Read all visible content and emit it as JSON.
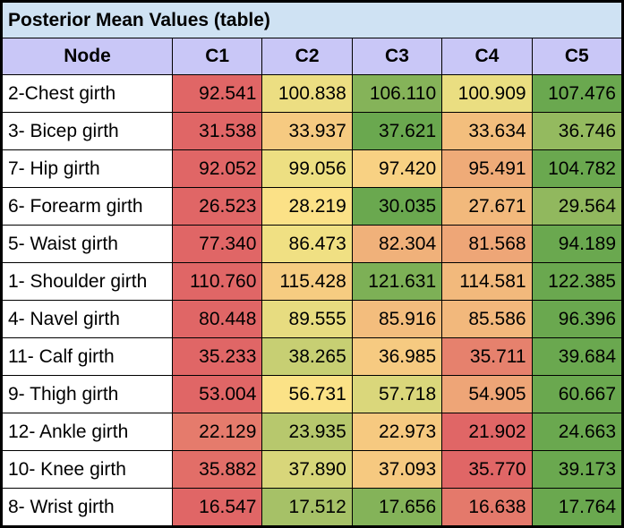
{
  "colors": {
    "low": "#e06666",
    "mid": "#fce588",
    "high": "#6aa84f",
    "header_bg": "#c9c7f7",
    "title_bg": "#cfe2f3"
  },
  "chart_data": {
    "type": "table",
    "title": "Posterior Mean Values (table)",
    "row_header": "Node",
    "columns": [
      "C1",
      "C2",
      "C3",
      "C4",
      "C5"
    ],
    "color_scale": "per-row red-yellow-green heatmap (low to high)",
    "rows": [
      {
        "node": "2-Chest girth",
        "values": [
          "92.541",
          "100.838",
          "106.110",
          "100.909",
          "107.476"
        ]
      },
      {
        "node": "3- Bicep girth",
        "values": [
          "31.538",
          "33.937",
          "37.621",
          "33.634",
          "36.746"
        ]
      },
      {
        "node": "7- Hip girth",
        "values": [
          "92.052",
          "99.056",
          "97.420",
          "95.491",
          "104.782"
        ]
      },
      {
        "node": "6- Forearm girth",
        "values": [
          "26.523",
          "28.219",
          "30.035",
          "27.671",
          "29.564"
        ]
      },
      {
        "node": "5- Waist girth",
        "values": [
          "77.340",
          "86.473",
          "82.304",
          "81.568",
          "94.189"
        ]
      },
      {
        "node": "1- Shoulder girth",
        "values": [
          "110.760",
          "115.428",
          "121.631",
          "114.581",
          "122.385"
        ]
      },
      {
        "node": "4- Navel girth",
        "values": [
          "80.448",
          "89.555",
          "85.916",
          "85.586",
          "96.396"
        ]
      },
      {
        "node": "11- Calf girth",
        "values": [
          "35.233",
          "38.265",
          "36.985",
          "35.711",
          "39.684"
        ]
      },
      {
        "node": "9- Thigh girth",
        "values": [
          "53.004",
          "56.731",
          "57.718",
          "54.905",
          "60.667"
        ]
      },
      {
        "node": "12- Ankle girth",
        "values": [
          "22.129",
          "23.935",
          "22.973",
          "21.902",
          "24.663"
        ]
      },
      {
        "node": "10- Knee girth",
        "values": [
          "35.882",
          "37.890",
          "37.093",
          "35.770",
          "39.173"
        ]
      },
      {
        "node": "8- Wrist girth",
        "values": [
          "16.547",
          "17.512",
          "17.656",
          "16.638",
          "17.764"
        ]
      }
    ]
  }
}
